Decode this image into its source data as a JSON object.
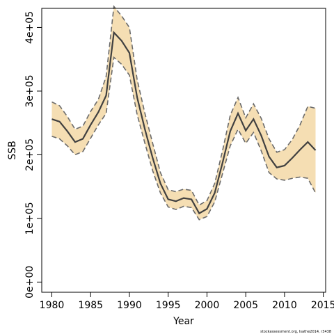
{
  "chart_data": {
    "type": "line",
    "xlabel": "Year",
    "ylabel": "SSB",
    "xlim": [
      1978.7,
      2015.3
    ],
    "ylim": [
      -16000,
      430000
    ],
    "xticks": [
      1980,
      1985,
      1990,
      1995,
      2000,
      2005,
      2010,
      2015
    ],
    "yticks": [
      0,
      100000,
      200000,
      300000,
      400000
    ],
    "xtick_labels": [
      "1980",
      "1985",
      "1990",
      "1995",
      "2000",
      "2005",
      "2010",
      "2015"
    ],
    "ytick_labels": [
      "0e+00",
      "1e+05",
      "2e+05",
      "3e+05",
      "4e+05"
    ],
    "grid": false,
    "colors": {
      "band": "#f5deb3",
      "line": "#404040",
      "bounds": "#6b6b6b"
    },
    "footnote": "stockassessment.org, Isathe2014, r3438",
    "x": [
      1980,
      1981,
      1982,
      1983,
      1984,
      1985,
      1986,
      1987,
      1988,
      1989,
      1990,
      1991,
      1992,
      1993,
      1994,
      1995,
      1996,
      1997,
      1998,
      1999,
      2000,
      2001,
      2002,
      2003,
      2004,
      2005,
      2006,
      2007,
      2008,
      2009,
      2010,
      2011,
      2012,
      2013,
      2014
    ],
    "series": [
      {
        "role": "estimate",
        "values": [
          256000,
          252000,
          237000,
          220000,
          225000,
          247000,
          267000,
          293000,
          392000,
          379000,
          360000,
          290000,
          240000,
          195000,
          155000,
          130000,
          127000,
          132000,
          130000,
          108000,
          115000,
          140000,
          187000,
          237000,
          265000,
          238000,
          256000,
          230000,
          197000,
          180000,
          183000,
          195000,
          208000,
          220000,
          207000
        ]
      },
      {
        "role": "upper",
        "values": [
          283000,
          277000,
          260000,
          240000,
          245000,
          268000,
          287000,
          323000,
          433000,
          418000,
          400000,
          318000,
          265000,
          218000,
          172000,
          145000,
          142000,
          146000,
          144000,
          121000,
          128000,
          155000,
          206000,
          262000,
          290000,
          258000,
          280000,
          257000,
          225000,
          204000,
          208000,
          224000,
          247000,
          276000,
          273000
        ]
      },
      {
        "role": "lower",
        "values": [
          229000,
          225000,
          214000,
          200000,
          205000,
          226000,
          247000,
          265000,
          353000,
          342000,
          325000,
          263000,
          218000,
          175000,
          140000,
          118000,
          114000,
          119000,
          117000,
          98000,
          103000,
          126000,
          170000,
          214000,
          240000,
          218000,
          235000,
          206000,
          172000,
          162000,
          160000,
          163000,
          165000,
          163000,
          140000
        ]
      }
    ]
  }
}
